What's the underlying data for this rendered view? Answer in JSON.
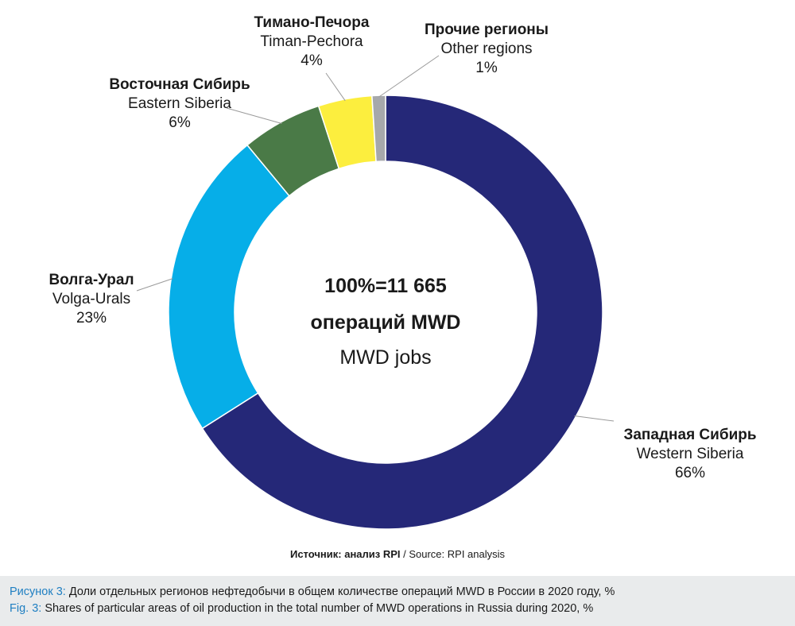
{
  "chart_data": {
    "type": "pie",
    "donut": true,
    "center_text": {
      "line1": "100%=11 665",
      "line2": "операций MWD",
      "line3": "MWD jobs"
    },
    "slices": [
      {
        "label_ru": "Западная Сибирь",
        "label_en": "Western Siberia",
        "pct_label": "66%",
        "value": 66,
        "color": "#252878"
      },
      {
        "label_ru": "Волга-Урал",
        "label_en": "Volga-Urals",
        "pct_label": "23%",
        "value": 23,
        "color": "#06aee8"
      },
      {
        "label_ru": "Восточная Сибирь",
        "label_en": "Eastern Siberia",
        "pct_label": "6%",
        "value": 6,
        "color": "#4a7a47"
      },
      {
        "label_ru": "Тимано-Печора",
        "label_en": "Timan-Pechora",
        "pct_label": "4%",
        "value": 4,
        "color": "#fcee3e"
      },
      {
        "label_ru": "Прочие регионы",
        "label_en": "Other regions",
        "pct_label": "1%",
        "value": 1,
        "color": "#a6a8ab"
      }
    ]
  },
  "source": {
    "label": "Источник: анализ RPI",
    "rest": " / Source: RPI analysis"
  },
  "caption": {
    "ru_prefix": "Рисунок 3:",
    "ru_text": " Доли отдельных регионов нефтедобычи в общем количестве операций MWD в России в 2020 году, %",
    "en_prefix": "Fig. 3:",
    "en_text": " Shares of particular areas of oil production in the total number of MWD operations in Russia during 2020, %"
  }
}
